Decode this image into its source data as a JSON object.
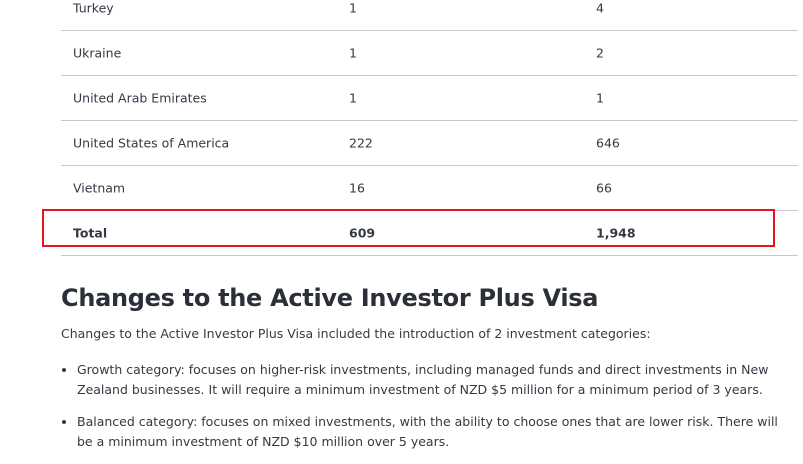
{
  "table": {
    "rows": [
      [
        "Turkey",
        "1",
        "4"
      ],
      [
        "Ukraine",
        "1",
        "2"
      ],
      [
        "United Arab Emirates",
        "1",
        "1"
      ],
      [
        "United States of America",
        "222",
        "646"
      ],
      [
        "Vietnam",
        "16",
        "66"
      ]
    ],
    "total": [
      "Total",
      "609",
      "1,948"
    ]
  },
  "highlight_color": "#e3141e",
  "section": {
    "title": "Changes to the Active Investor Plus Visa",
    "intro": "Changes to the Active Investor Plus Visa included the introduction of 2 investment categories:",
    "bullets": [
      "Growth category: focuses on higher-risk investments, including managed funds and direct investments in New Zealand businesses. It will require a minimum investment of NZD $5 million for a minimum period of 3 years.",
      "Balanced category: focuses on mixed investments, with the ability to choose ones that are lower risk. There will be a minimum investment of NZD $10 million over 5 years."
    ]
  }
}
